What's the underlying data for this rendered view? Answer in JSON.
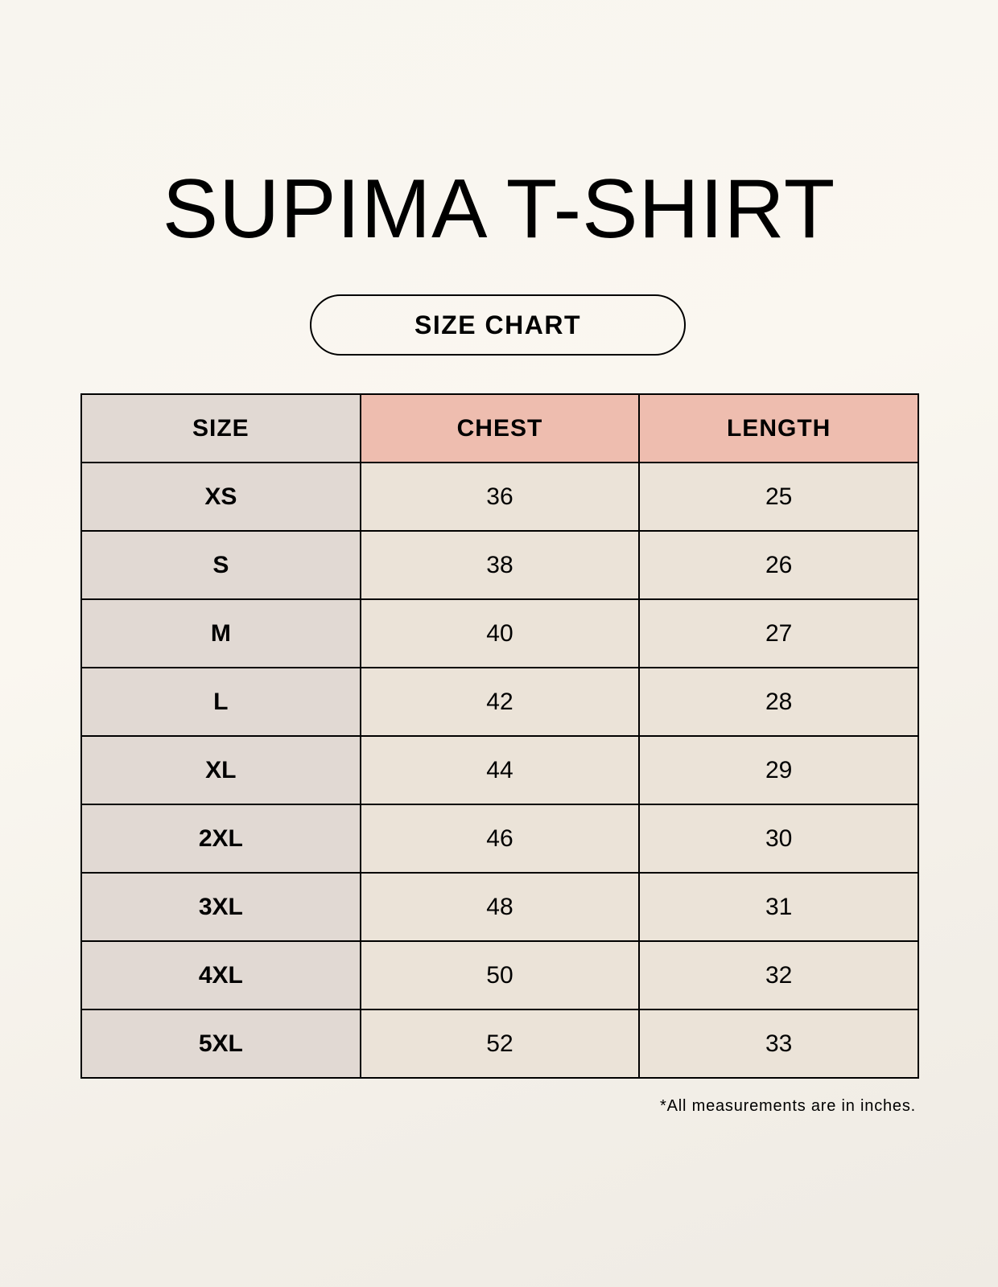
{
  "title": "SUPIMA T-SHIRT",
  "subtitle": "SIZE CHART",
  "colors": {
    "size_column": "#e1d9d3",
    "measure_header": "#eebdaf",
    "cell": "#ebe3d8"
  },
  "table": {
    "headers": [
      "SIZE",
      "CHEST",
      "LENGTH"
    ],
    "rows": [
      [
        "XS",
        "36",
        "25"
      ],
      [
        "S",
        "38",
        "26"
      ],
      [
        "M",
        "40",
        "27"
      ],
      [
        "L",
        "42",
        "28"
      ],
      [
        "XL",
        "44",
        "29"
      ],
      [
        "2XL",
        "46",
        "30"
      ],
      [
        "3XL",
        "48",
        "31"
      ],
      [
        "4XL",
        "50",
        "32"
      ],
      [
        "5XL",
        "52",
        "33"
      ]
    ]
  },
  "footnote": "*All measurements are in inches."
}
